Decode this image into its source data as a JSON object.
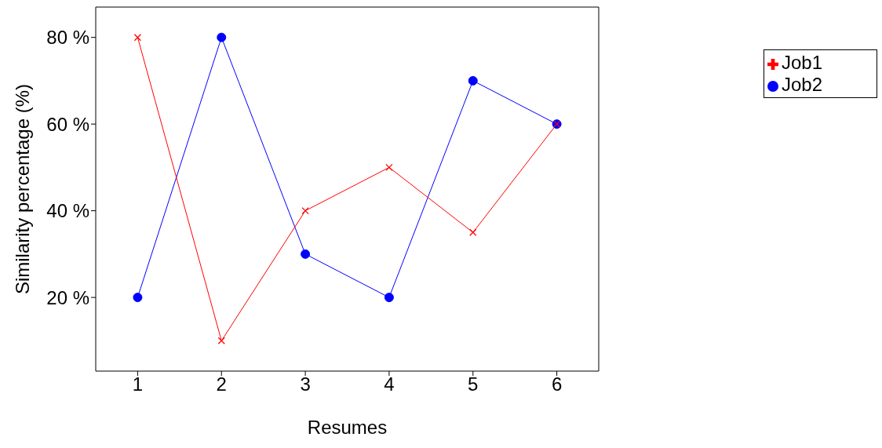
{
  "chart_data": {
    "type": "line",
    "xlabel": "Resumes",
    "ylabel": "Similarity percentage (%)",
    "x": [
      1,
      2,
      3,
      4,
      5,
      6
    ],
    "series": [
      {
        "name": "Job1",
        "color": "#ff0000",
        "values": [
          80,
          10,
          40,
          50,
          35,
          60
        ],
        "marker": "cross"
      },
      {
        "name": "Job2",
        "color": "#0000ff",
        "values": [
          20,
          80,
          30,
          20,
          70,
          60
        ],
        "marker": "circle"
      }
    ],
    "xlim": [
      0.5,
      6.5
    ],
    "xticks": [
      1,
      2,
      3,
      4,
      5,
      6
    ],
    "ylim": [
      3,
      87
    ],
    "yticks": [
      {
        "value": 20,
        "label": "20 %"
      },
      {
        "value": 40,
        "label": "40 %"
      },
      {
        "value": 60,
        "label": "60 %"
      },
      {
        "value": 80,
        "label": "80 %"
      }
    ],
    "grid": false,
    "legend": "top right",
    "line_style": "solid"
  }
}
